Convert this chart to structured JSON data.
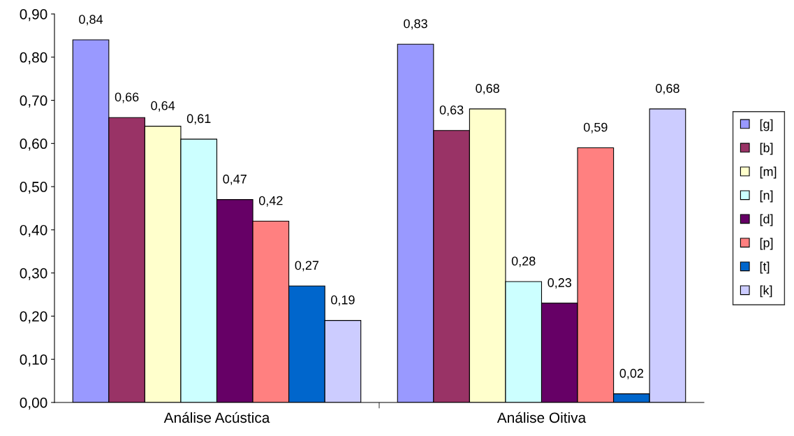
{
  "chart_data": {
    "type": "bar",
    "categories": [
      "Análise Acústica",
      "Análise Oitiva"
    ],
    "series": [
      {
        "name": "[g]",
        "color": "#9999ff",
        "values": [
          0.84,
          0.83
        ],
        "value_labels": [
          "0,84",
          "0,83"
        ]
      },
      {
        "name": "[b]",
        "color": "#993366",
        "values": [
          0.66,
          0.63
        ],
        "value_labels": [
          "0,66",
          "0,63"
        ]
      },
      {
        "name": "[m]",
        "color": "#ffffcc",
        "values": [
          0.64,
          0.68
        ],
        "value_labels": [
          "0,64",
          "0,68"
        ]
      },
      {
        "name": "[n]",
        "color": "#ccffff",
        "values": [
          0.61,
          0.28
        ],
        "value_labels": [
          "0,61",
          "0,28"
        ]
      },
      {
        "name": "[d]",
        "color": "#660066",
        "values": [
          0.47,
          0.23
        ],
        "value_labels": [
          "0,47",
          "0,23"
        ]
      },
      {
        "name": "[p]",
        "color": "#ff8080",
        "values": [
          0.42,
          0.59
        ],
        "value_labels": [
          "0,42",
          "0,59"
        ]
      },
      {
        "name": "[t]",
        "color": "#0066cc",
        "values": [
          0.27,
          0.02
        ],
        "value_labels": [
          "0,27",
          "0,02"
        ]
      },
      {
        "name": "[k]",
        "color": "#ccccff",
        "values": [
          0.19,
          0.68
        ],
        "value_labels": [
          "0,19",
          "0,68"
        ]
      }
    ],
    "ylim": [
      0,
      0.9
    ],
    "yticks": [
      {
        "value": 0,
        "label": "0,00"
      },
      {
        "value": 0.1,
        "label": "0,10"
      },
      {
        "value": 0.2,
        "label": "0,20"
      },
      {
        "value": 0.3,
        "label": "0,30"
      },
      {
        "value": 0.4,
        "label": "0,40"
      },
      {
        "value": 0.5,
        "label": "0,50"
      },
      {
        "value": 0.6,
        "label": "0,60"
      },
      {
        "value": 0.7,
        "label": "0,70"
      },
      {
        "value": 0.8,
        "label": "0,80"
      },
      {
        "value": 0.9,
        "label": "0,90"
      }
    ],
    "legend": "right",
    "grid": false
  }
}
